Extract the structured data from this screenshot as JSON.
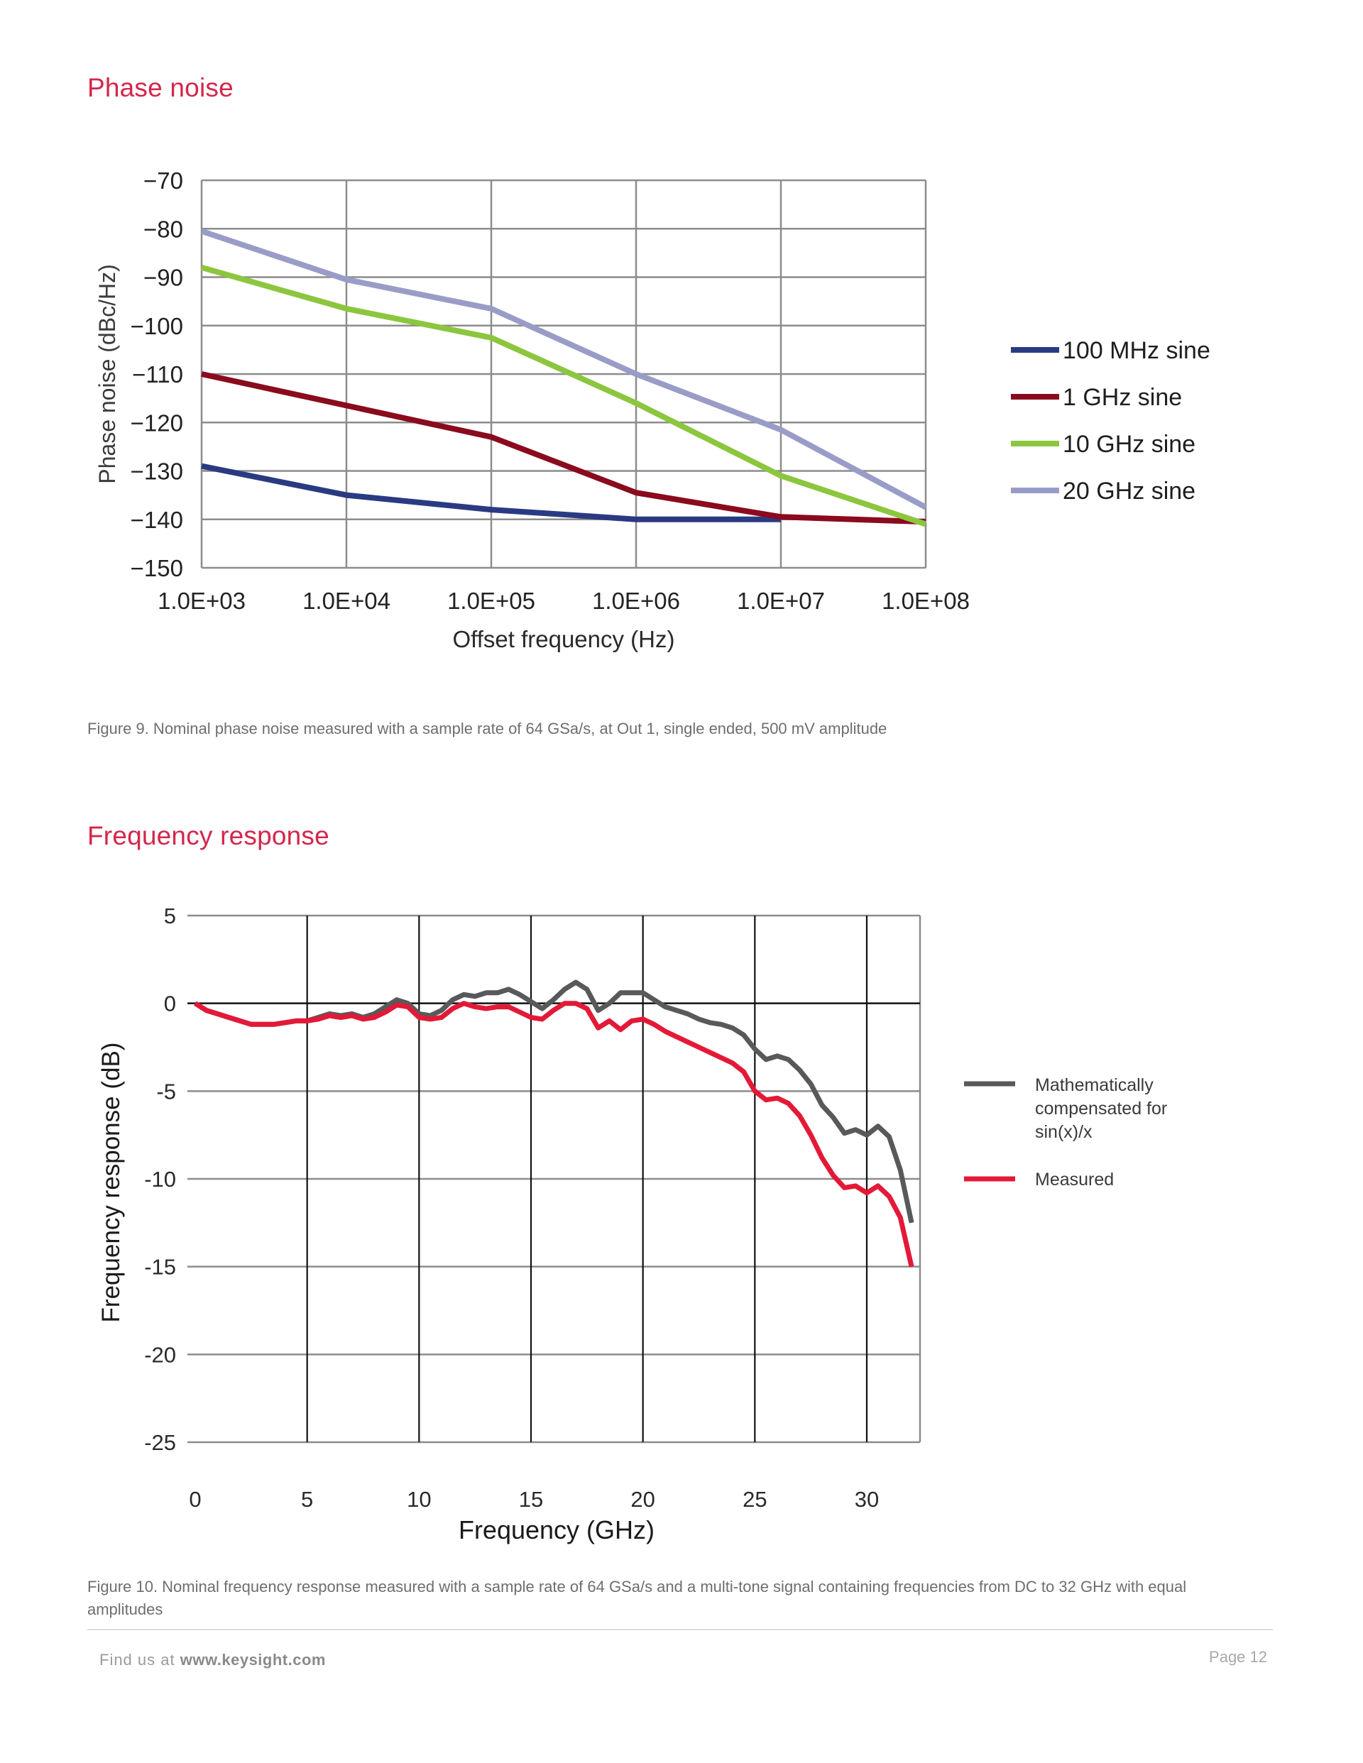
{
  "sections": {
    "phase_noise": {
      "title": "Phase noise",
      "caption": "Figure 9. Nominal phase noise measured with a sample rate of 64 GSa/s, at Out 1, single ended, 500 mV amplitude"
    },
    "frequency_response": {
      "title": "Frequency response",
      "caption": "Figure 10. Nominal frequency response measured with a sample rate of 64 GSa/s and a multi-tone signal containing frequencies from DC to 32 GHz with equal amplitudes"
    }
  },
  "footer": {
    "find_us_prefix": "Find us at",
    "url": "www.keysight.com",
    "page": "Page 12"
  },
  "chart_data": [
    {
      "type": "line",
      "title": "Phase noise",
      "xlabel": "Offset frequency (Hz)",
      "ylabel": "Phase noise (dBc/Hz)",
      "x_scale": "log",
      "x": [
        1000,
        10000,
        100000,
        1000000,
        10000000,
        100000000
      ],
      "x_tick_labels": [
        "1.0E+03",
        "1.0E+04",
        "1.0E+05",
        "1.0E+06",
        "1.0E+07",
        "1.0E+08"
      ],
      "ylim": [
        -150,
        -70
      ],
      "y_ticks": [
        -70,
        -80,
        -90,
        -100,
        -110,
        -120,
        -130,
        -140,
        -150
      ],
      "grid": true,
      "legend_position": "right",
      "series": [
        {
          "name": "100 MHz sine",
          "color": "#2a3a82",
          "values": [
            -129,
            -135,
            -138,
            -140,
            -140,
            null
          ]
        },
        {
          "name": "1 GHz sine",
          "color": "#8a0a1e",
          "values": [
            -110,
            -116.5,
            -123,
            -134.5,
            -139.5,
            -140.5
          ]
        },
        {
          "name": "10 GHz sine",
          "color": "#8cc63f",
          "values": [
            -88,
            -96.5,
            -102.5,
            -116,
            -131,
            -141
          ]
        },
        {
          "name": "20 GHz sine",
          "color": "#9a9cc8",
          "values": [
            -80.5,
            -90.5,
            -96.5,
            -110,
            -121.5,
            -137.5
          ]
        }
      ]
    },
    {
      "type": "line",
      "title": "Frequency response",
      "xlabel": "Frequency (GHz)",
      "ylabel": "Frequency response (dB)",
      "xlim": [
        0,
        32.4
      ],
      "x_ticks": [
        0,
        5,
        10,
        15,
        20,
        25,
        30
      ],
      "ylim": [
        -25,
        5
      ],
      "y_ticks": [
        5,
        0,
        -5,
        -10,
        -15,
        -20,
        -25
      ],
      "grid": true,
      "legend_position": "right",
      "series": [
        {
          "name": "Mathematically compensated for sin(x)/x",
          "color": "#58595b",
          "x": [
            0,
            0.5,
            1,
            1.5,
            2,
            2.5,
            3,
            3.5,
            4,
            4.5,
            5,
            5.5,
            6,
            6.5,
            7,
            7.5,
            8,
            8.5,
            9,
            9.5,
            10,
            10.5,
            11,
            11.5,
            12,
            12.5,
            13,
            13.5,
            14,
            14.5,
            15,
            15.5,
            16,
            16.5,
            17,
            17.5,
            18,
            18.5,
            19,
            19.5,
            20,
            20.5,
            21,
            21.5,
            22,
            22.5,
            23,
            23.5,
            24,
            24.5,
            25,
            25.5,
            26,
            26.5,
            27,
            27.5,
            28,
            28.5,
            29,
            29.5,
            30,
            30.5,
            31,
            31.5,
            32
          ],
          "values": [
            0,
            -0.4,
            -0.6,
            -0.8,
            -1.0,
            -1.2,
            -1.2,
            -1.2,
            -1.1,
            -1.0,
            -1.0,
            -0.8,
            -0.6,
            -0.7,
            -0.6,
            -0.8,
            -0.6,
            -0.2,
            0.2,
            0.0,
            -0.6,
            -0.7,
            -0.4,
            0.2,
            0.5,
            0.4,
            0.6,
            0.6,
            0.8,
            0.5,
            0.1,
            -0.3,
            0.2,
            0.8,
            1.2,
            0.8,
            -0.4,
            0.0,
            0.6,
            0.6,
            0.6,
            0.2,
            -0.2,
            -0.4,
            -0.6,
            -0.9,
            -1.1,
            -1.2,
            -1.4,
            -1.8,
            -2.6,
            -3.2,
            -3.0,
            -3.2,
            -3.8,
            -4.6,
            -5.8,
            -6.5,
            -7.4,
            -7.2,
            -7.5,
            -7.0,
            -7.6,
            -9.5,
            -12.5
          ]
        },
        {
          "name": "Measured",
          "color": "#e31937",
          "x": [
            0,
            0.5,
            1,
            1.5,
            2,
            2.5,
            3,
            3.5,
            4,
            4.5,
            5,
            5.5,
            6,
            6.5,
            7,
            7.5,
            8,
            8.5,
            9,
            9.5,
            10,
            10.5,
            11,
            11.5,
            12,
            12.5,
            13,
            13.5,
            14,
            14.5,
            15,
            15.5,
            16,
            16.5,
            17,
            17.5,
            18,
            18.5,
            19,
            19.5,
            20,
            20.5,
            21,
            21.5,
            22,
            22.5,
            23,
            23.5,
            24,
            24.5,
            25,
            25.5,
            26,
            26.5,
            27,
            27.5,
            28,
            28.5,
            29,
            29.5,
            30,
            30.5,
            31,
            31.5,
            32
          ],
          "values": [
            0,
            -0.4,
            -0.6,
            -0.8,
            -1.0,
            -1.2,
            -1.2,
            -1.2,
            -1.1,
            -1.0,
            -1.0,
            -0.9,
            -0.7,
            -0.8,
            -0.7,
            -0.9,
            -0.8,
            -0.5,
            -0.1,
            -0.2,
            -0.8,
            -0.9,
            -0.8,
            -0.3,
            0.0,
            -0.2,
            -0.3,
            -0.2,
            -0.2,
            -0.5,
            -0.8,
            -0.9,
            -0.4,
            0.0,
            0.0,
            -0.3,
            -1.4,
            -1.0,
            -1.5,
            -1.0,
            -0.9,
            -1.2,
            -1.6,
            -1.9,
            -2.2,
            -2.5,
            -2.8,
            -3.1,
            -3.4,
            -3.9,
            -5.0,
            -5.5,
            -5.4,
            -5.7,
            -6.4,
            -7.5,
            -8.8,
            -9.8,
            -10.5,
            -10.4,
            -10.8,
            -10.4,
            -11.0,
            -12.2,
            -15.0
          ]
        }
      ]
    }
  ]
}
